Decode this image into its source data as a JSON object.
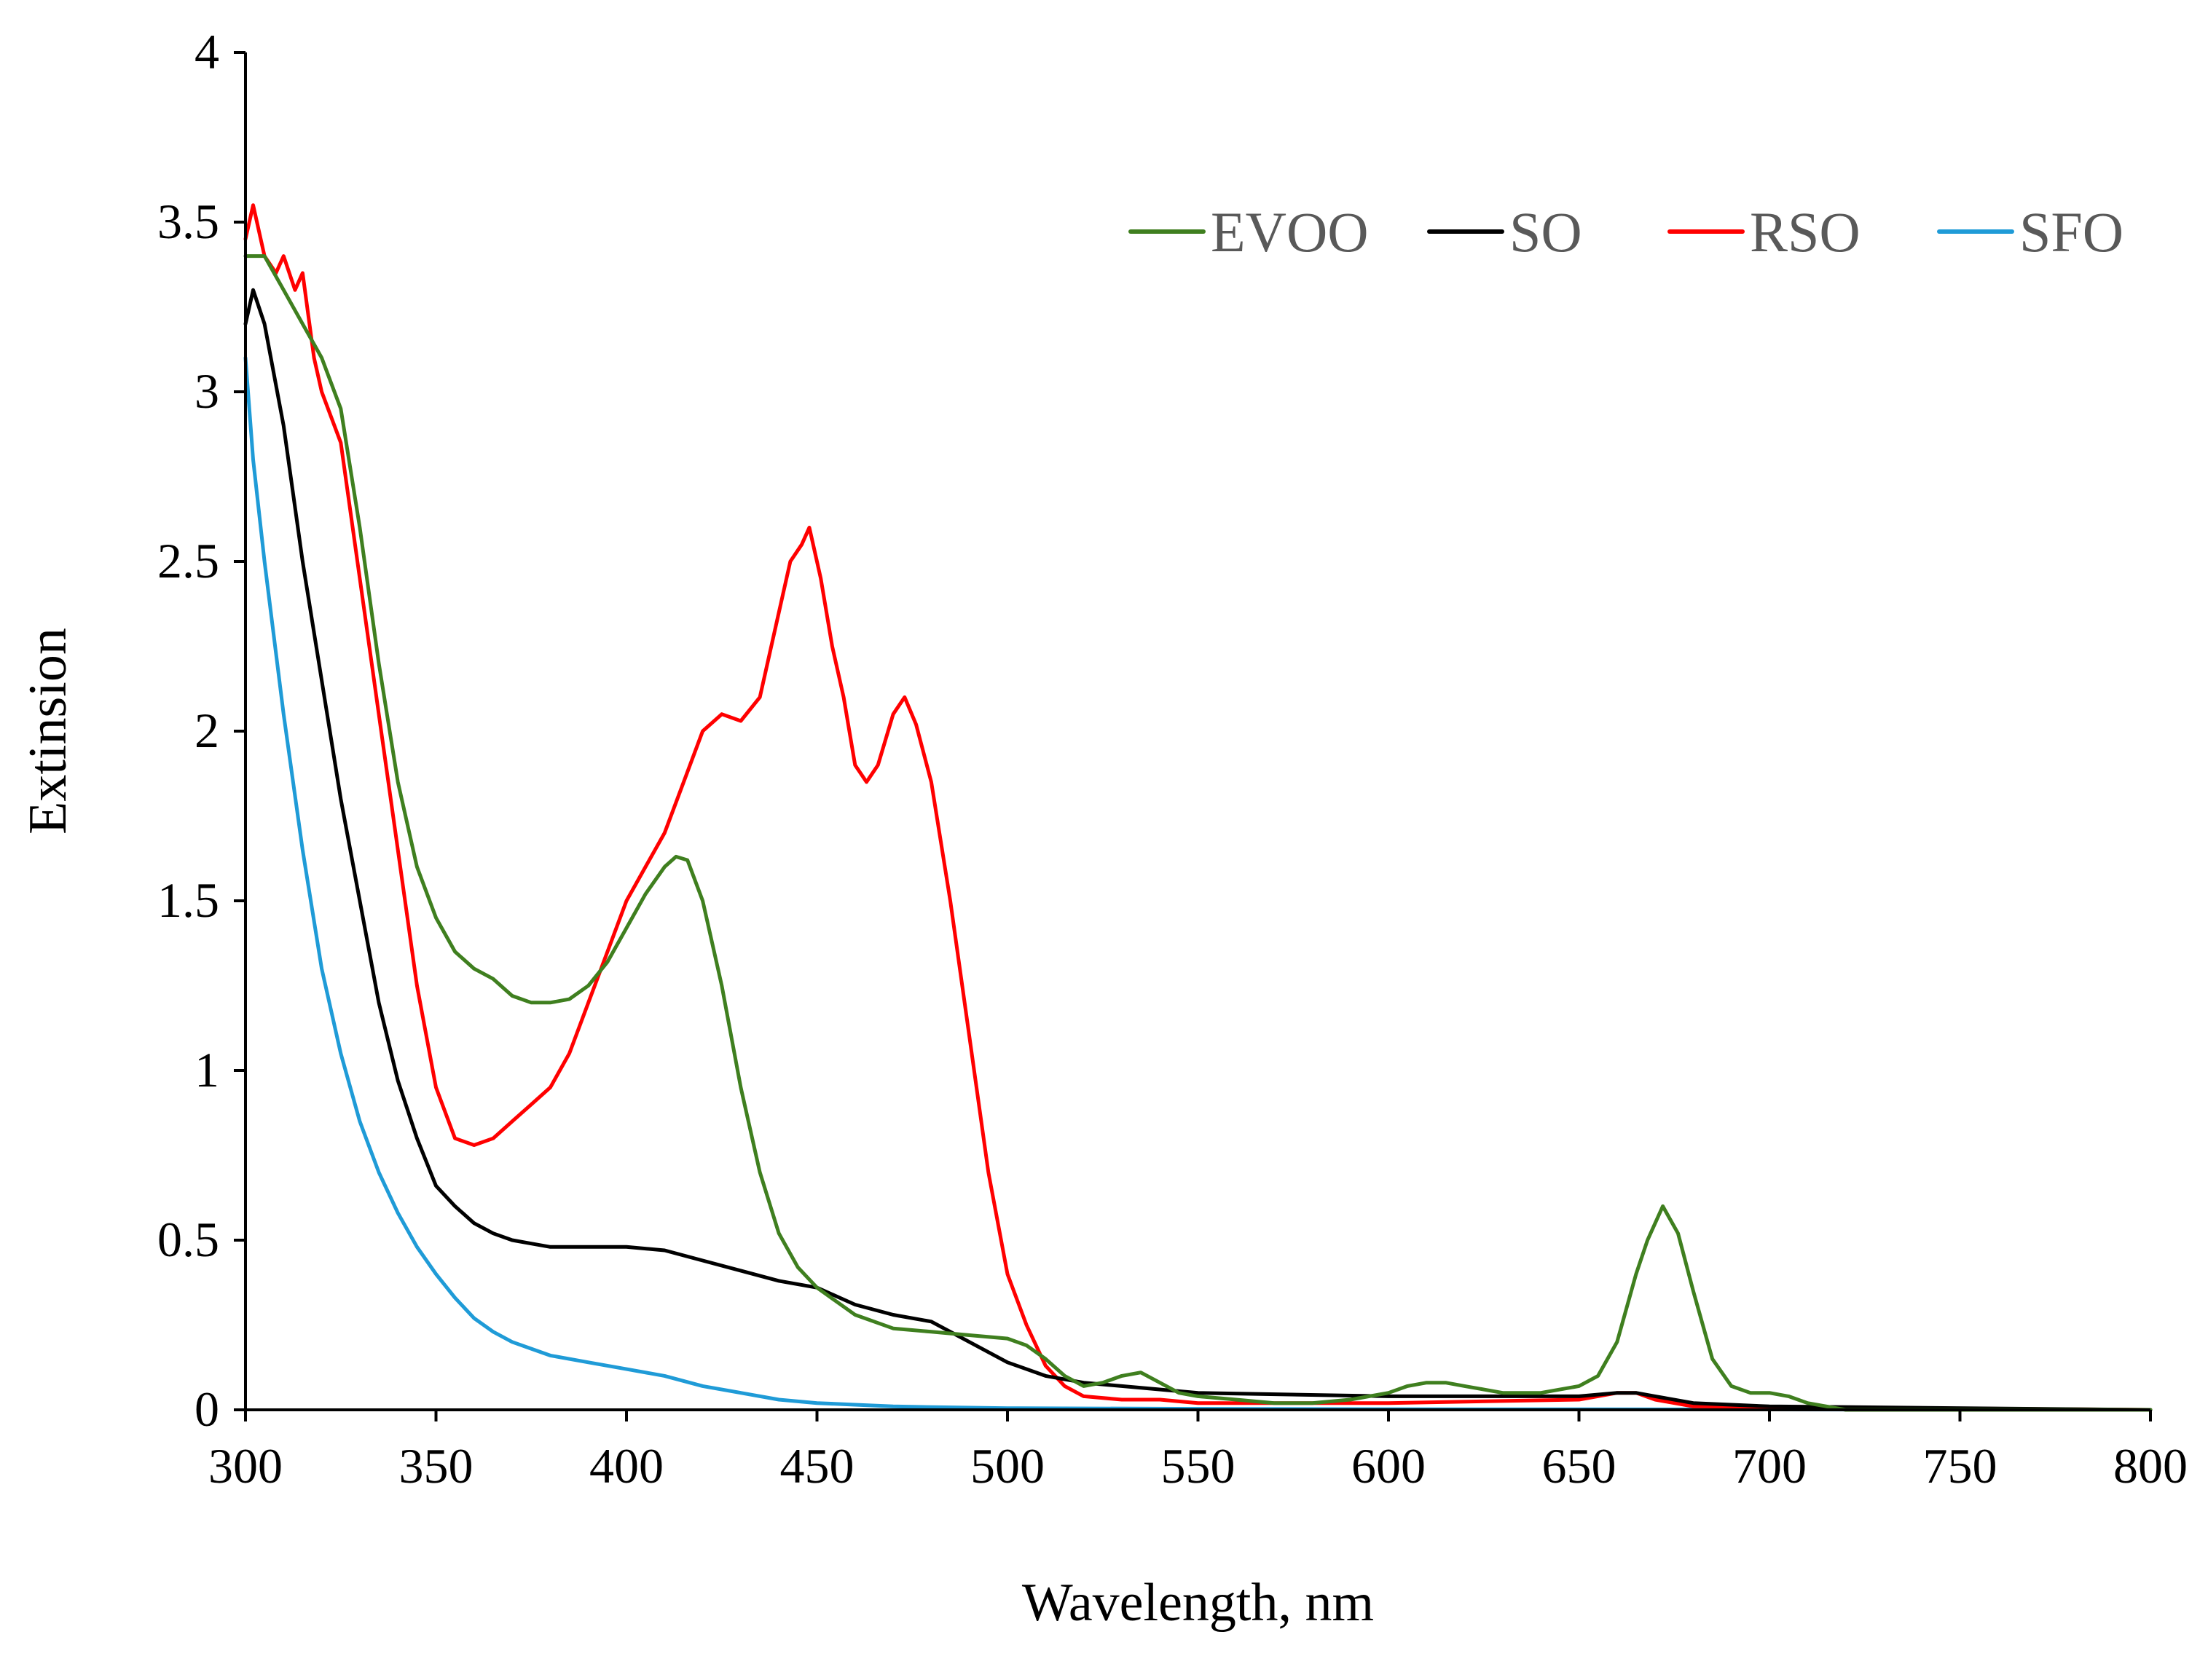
{
  "chart_data": {
    "type": "line",
    "title": "",
    "xlabel": "Wavelength, nm",
    "ylabel": "Extinsion",
    "xlim": [
      300,
      800
    ],
    "ylim": [
      0,
      4
    ],
    "xticks": [
      300,
      350,
      400,
      450,
      500,
      550,
      600,
      650,
      700,
      750,
      800
    ],
    "yticks": [
      0,
      0.5,
      1,
      1.5,
      2,
      2.5,
      3,
      3.5,
      4
    ],
    "xtick_labels": [
      "300",
      "350",
      "400",
      "450",
      "500",
      "550",
      "600",
      "650",
      "700",
      "750",
      "800"
    ],
    "ytick_labels": [
      "0",
      "0.5",
      "1",
      "1.5",
      "2",
      "2.5",
      "3",
      "3.5",
      "4"
    ],
    "grid": false,
    "legend_position": "top-right",
    "series": [
      {
        "name": "EVOO",
        "color": "#3f7f1f",
        "x": [
          300,
          305,
          310,
          315,
          320,
          325,
          330,
          335,
          340,
          345,
          350,
          355,
          360,
          365,
          370,
          375,
          380,
          385,
          390,
          395,
          400,
          405,
          410,
          413,
          416,
          420,
          425,
          430,
          435,
          440,
          445,
          450,
          460,
          470,
          480,
          490,
          500,
          505,
          510,
          515,
          520,
          525,
          530,
          535,
          540,
          545,
          550,
          560,
          570,
          580,
          590,
          600,
          605,
          610,
          615,
          620,
          630,
          640,
          650,
          655,
          660,
          665,
          668,
          672,
          676,
          680,
          685,
          690,
          695,
          700,
          705,
          710,
          715,
          720,
          750,
          800
        ],
        "y": [
          3.4,
          3.4,
          3.3,
          3.2,
          3.1,
          2.95,
          2.6,
          2.2,
          1.85,
          1.6,
          1.45,
          1.35,
          1.3,
          1.27,
          1.22,
          1.2,
          1.2,
          1.21,
          1.25,
          1.32,
          1.42,
          1.52,
          1.6,
          1.63,
          1.62,
          1.5,
          1.25,
          0.95,
          0.7,
          0.52,
          0.42,
          0.36,
          0.28,
          0.24,
          0.23,
          0.22,
          0.21,
          0.19,
          0.15,
          0.1,
          0.07,
          0.08,
          0.1,
          0.11,
          0.08,
          0.05,
          0.04,
          0.03,
          0.02,
          0.02,
          0.03,
          0.05,
          0.07,
          0.08,
          0.08,
          0.07,
          0.05,
          0.05,
          0.07,
          0.1,
          0.2,
          0.4,
          0.5,
          0.6,
          0.52,
          0.35,
          0.15,
          0.07,
          0.05,
          0.05,
          0.04,
          0.02,
          0.01,
          0,
          0,
          0
        ]
      },
      {
        "name": "SO",
        "color": "#000000",
        "x": [
          300,
          302,
          305,
          310,
          315,
          320,
          325,
          330,
          335,
          340,
          345,
          350,
          355,
          360,
          365,
          370,
          375,
          380,
          390,
          400,
          410,
          420,
          430,
          440,
          450,
          460,
          470,
          480,
          490,
          500,
          510,
          520,
          530,
          550,
          600,
          650,
          660,
          665,
          670,
          680,
          700,
          800
        ],
        "y": [
          3.2,
          3.3,
          3.2,
          2.9,
          2.5,
          2.15,
          1.8,
          1.5,
          1.2,
          0.97,
          0.8,
          0.66,
          0.6,
          0.55,
          0.52,
          0.5,
          0.49,
          0.48,
          0.48,
          0.48,
          0.47,
          0.44,
          0.41,
          0.38,
          0.36,
          0.31,
          0.28,
          0.26,
          0.2,
          0.14,
          0.1,
          0.08,
          0.07,
          0.05,
          0.04,
          0.04,
          0.05,
          0.05,
          0.04,
          0.02,
          0.01,
          0
        ]
      },
      {
        "name": "RSO",
        "color": "#ff0000",
        "x": [
          300,
          302,
          305,
          308,
          310,
          313,
          315,
          318,
          320,
          325,
          330,
          335,
          340,
          345,
          350,
          355,
          360,
          365,
          370,
          375,
          380,
          385,
          390,
          395,
          400,
          405,
          410,
          415,
          420,
          425,
          430,
          435,
          440,
          443,
          446,
          448,
          451,
          454,
          457,
          460,
          463,
          466,
          470,
          473,
          476,
          480,
          485,
          490,
          495,
          500,
          505,
          510,
          515,
          520,
          530,
          540,
          550,
          560,
          600,
          650,
          660,
          665,
          670,
          680,
          800
        ],
        "y": [
          3.45,
          3.55,
          3.4,
          3.35,
          3.4,
          3.3,
          3.35,
          3.1,
          3.0,
          2.85,
          2.45,
          2.05,
          1.65,
          1.25,
          0.95,
          0.8,
          0.78,
          0.8,
          0.85,
          0.9,
          0.95,
          1.05,
          1.2,
          1.35,
          1.5,
          1.6,
          1.7,
          1.85,
          2.0,
          2.05,
          2.03,
          2.1,
          2.35,
          2.5,
          2.55,
          2.6,
          2.45,
          2.25,
          2.1,
          1.9,
          1.85,
          1.9,
          2.05,
          2.1,
          2.02,
          1.85,
          1.5,
          1.1,
          0.7,
          0.4,
          0.25,
          0.13,
          0.07,
          0.04,
          0.03,
          0.03,
          0.02,
          0.02,
          0.02,
          0.03,
          0.05,
          0.05,
          0.03,
          0.01,
          0
        ]
      },
      {
        "name": "SFO",
        "color": "#1f9bd7",
        "x": [
          300,
          302,
          305,
          310,
          315,
          320,
          325,
          330,
          335,
          340,
          345,
          350,
          355,
          360,
          365,
          370,
          375,
          380,
          390,
          400,
          410,
          420,
          430,
          440,
          450,
          460,
          470,
          480,
          500,
          550,
          600,
          700,
          800
        ],
        "y": [
          3.1,
          2.8,
          2.5,
          2.05,
          1.65,
          1.3,
          1.05,
          0.85,
          0.7,
          0.58,
          0.48,
          0.4,
          0.33,
          0.27,
          0.23,
          0.2,
          0.18,
          0.16,
          0.14,
          0.12,
          0.1,
          0.07,
          0.05,
          0.03,
          0.02,
          0.015,
          0.01,
          0.008,
          0.005,
          0.003,
          0.002,
          0.001,
          0
        ]
      }
    ]
  }
}
